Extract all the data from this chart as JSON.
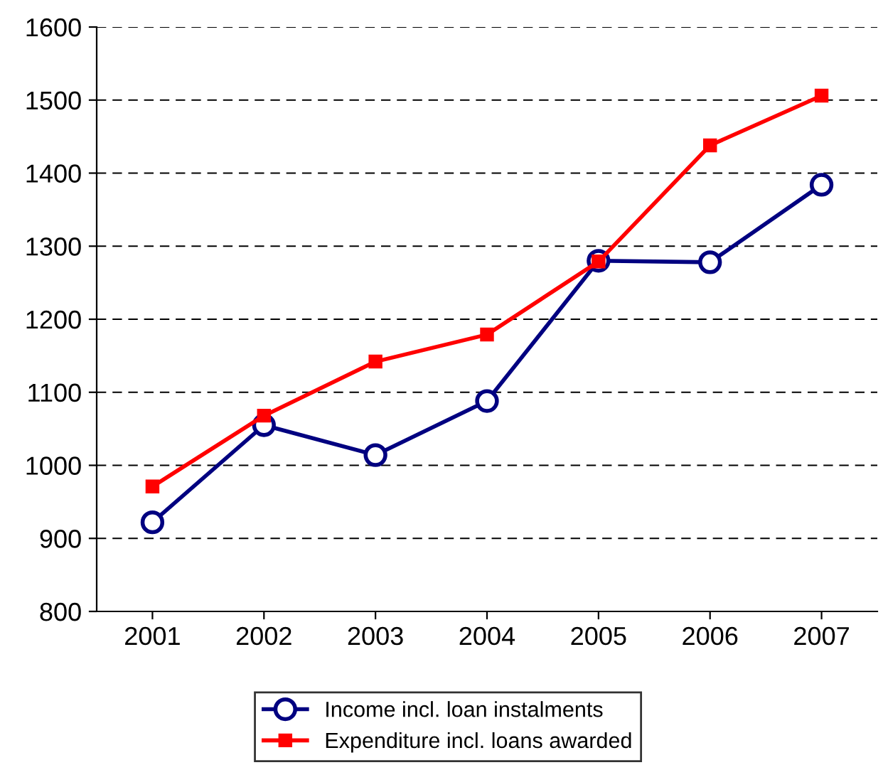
{
  "chart_data": {
    "type": "line",
    "categories": [
      "2001",
      "2002",
      "2003",
      "2004",
      "2005",
      "2006",
      "2007"
    ],
    "series": [
      {
        "name": "Income incl. loan instalments",
        "color": "#000080",
        "marker": "circle",
        "values": [
          922,
          1055,
          1014,
          1088,
          1280,
          1278,
          1384
        ]
      },
      {
        "name": "Expenditure incl. loans awarded",
        "color": "#ff0000",
        "marker": "square",
        "values": [
          971,
          1068,
          1142,
          1179,
          1279,
          1438,
          1506
        ]
      }
    ],
    "ylim": [
      800,
      1600
    ],
    "yticks": [
      800,
      900,
      1000,
      1100,
      1200,
      1300,
      1400,
      1500,
      1600
    ],
    "grid": "y",
    "legend": "bottom",
    "line_style": "solid"
  }
}
